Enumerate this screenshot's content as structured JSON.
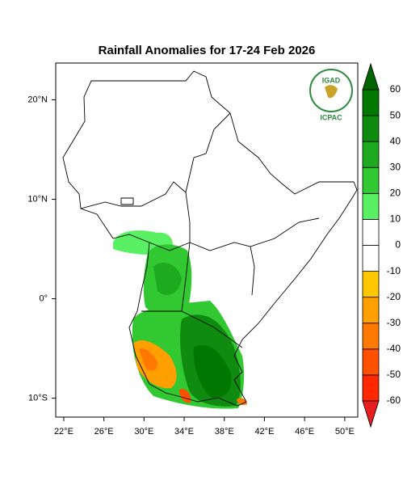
{
  "map": {
    "title": "Rainfall Anomalies for 17-24 Feb 2026",
    "xlim": [
      21.2,
      51.3
    ],
    "ylim": [
      -11.9,
      23.7
    ],
    "xticks": [
      {
        "value": 22,
        "label": "22°E"
      },
      {
        "value": 26,
        "label": "26°E"
      },
      {
        "value": 30,
        "label": "30°E"
      },
      {
        "value": 34,
        "label": "34°E"
      },
      {
        "value": 38,
        "label": "38°E"
      },
      {
        "value": 42,
        "label": "42°E"
      },
      {
        "value": 46,
        "label": "46°E"
      },
      {
        "value": 50,
        "label": "50°E"
      }
    ],
    "yticks": [
      {
        "value": 20,
        "label": "20°N"
      },
      {
        "value": 10,
        "label": "10°N"
      },
      {
        "value": 0,
        "label": "0°"
      },
      {
        "value": -10,
        "label": "10°S"
      }
    ],
    "colorbar": {
      "ticks": [
        -60,
        -50,
        -40,
        -30,
        -20,
        -10,
        0,
        10,
        20,
        30,
        40,
        50,
        60
      ],
      "colors": [
        "#ff2800",
        "#ff5000",
        "#ff7800",
        "#ffa000",
        "#ffc800",
        "#ffffff",
        "#ffffff",
        "#5af064",
        "#32c832",
        "#1eaa1e",
        "#0f8c0f",
        "#007800"
      ],
      "under_color": "#e61e1e",
      "over_color": "#006400"
    },
    "logo": {
      "name": "IGAD",
      "org": "ICPAC"
    }
  }
}
